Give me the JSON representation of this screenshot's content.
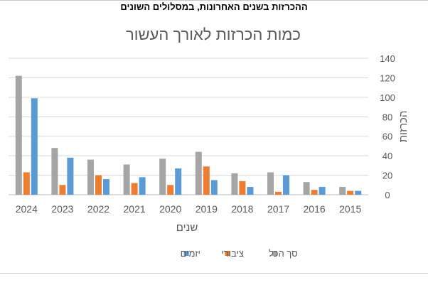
{
  "header": {
    "title": "ההכרזות בשנים האחרונות, במסלולים השונים"
  },
  "chart_data": {
    "type": "bar",
    "title": "כמות הכרזות לאורך העשור",
    "xlabel": "שנים",
    "ylabel": "הכרזות",
    "ylim": [
      0,
      140
    ],
    "yticks": [
      0,
      20,
      40,
      60,
      80,
      100,
      120,
      140
    ],
    "grid": true,
    "legend_position": "bottom",
    "categories": [
      "2024",
      "2023",
      "2022",
      "2021",
      "2020",
      "2019",
      "2018",
      "2017",
      "2016",
      "2015"
    ],
    "series": [
      {
        "name": "סך הכל",
        "color": "#a5a5a5",
        "values": [
          122,
          48,
          36,
          31,
          37,
          44,
          22,
          23,
          13,
          8
        ]
      },
      {
        "name": "ציבורי",
        "color": "#ed7d31",
        "values": [
          23,
          10,
          20,
          12,
          10,
          29,
          14,
          3,
          5,
          4
        ]
      },
      {
        "name": "יזמים",
        "color": "#5b9bd5",
        "values": [
          99,
          38,
          16,
          18,
          27,
          15,
          8,
          20,
          8,
          4
        ]
      }
    ]
  }
}
